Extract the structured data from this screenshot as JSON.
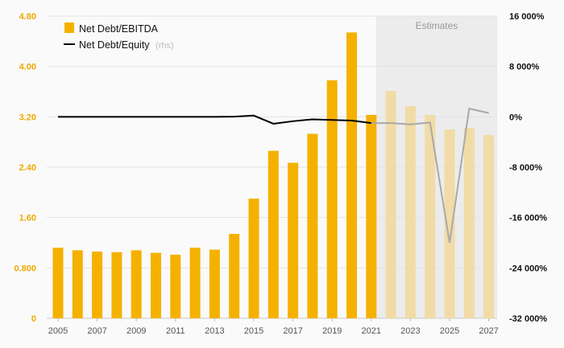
{
  "chart_data": {
    "type": "bar",
    "categories": [
      "2005",
      "2006",
      "2007",
      "2008",
      "2009",
      "2010",
      "2011",
      "2012",
      "2013",
      "2014",
      "2015",
      "2016",
      "2017",
      "2018",
      "2019",
      "2020",
      "2021",
      "2022",
      "2023",
      "2024",
      "2025",
      "2026",
      "2027"
    ],
    "x_tick_labels": [
      "2005",
      "2007",
      "2009",
      "2011",
      "2013",
      "2015",
      "2017",
      "2019",
      "2021",
      "2023",
      "2025",
      "2027"
    ],
    "y_left": {
      "ylim": [
        0,
        4.8
      ],
      "ticks": [
        "0",
        "0.800",
        "1.60",
        "2.40",
        "3.20",
        "4.00",
        "4.80"
      ]
    },
    "y_right": {
      "ylim": [
        -32000,
        16000
      ],
      "ticks": [
        "-32 000%",
        "-24 000%",
        "-16 000%",
        "-8 000%",
        "0%",
        "8 000%",
        "16 000%"
      ]
    },
    "series": [
      {
        "name": "Net Debt/EBITDA",
        "axis": "left",
        "type": "bar",
        "color": "#f5b100",
        "values": [
          1.12,
          1.08,
          1.06,
          1.05,
          1.08,
          1.04,
          1.01,
          1.12,
          1.09,
          1.34,
          1.9,
          2.66,
          2.47,
          2.93,
          3.78,
          4.54,
          3.23,
          3.61,
          3.37,
          3.23,
          3.0,
          3.02,
          2.91
        ],
        "estimated_from": "2022"
      },
      {
        "name": "Net Debt/Equity",
        "axis_note": "(rhs)",
        "axis": "right",
        "type": "line",
        "color": "#000000",
        "values": [
          0,
          0,
          0,
          0,
          0,
          0,
          0,
          0,
          0,
          20,
          200,
          -1100,
          -700,
          -400,
          -500,
          -600,
          -1000,
          -1000,
          -1200,
          -900,
          -20000,
          1300,
          600
        ]
      }
    ],
    "estimates_label": "Estimates",
    "estimates_start": "2022",
    "grid": true,
    "legend_position": "top-left",
    "colors": {
      "bar": "#f5b100",
      "bar_estimate": "#f1dba6",
      "line": "#000000",
      "line_estimate": "#a9a9a9",
      "estimate_band": "#ececec"
    }
  }
}
